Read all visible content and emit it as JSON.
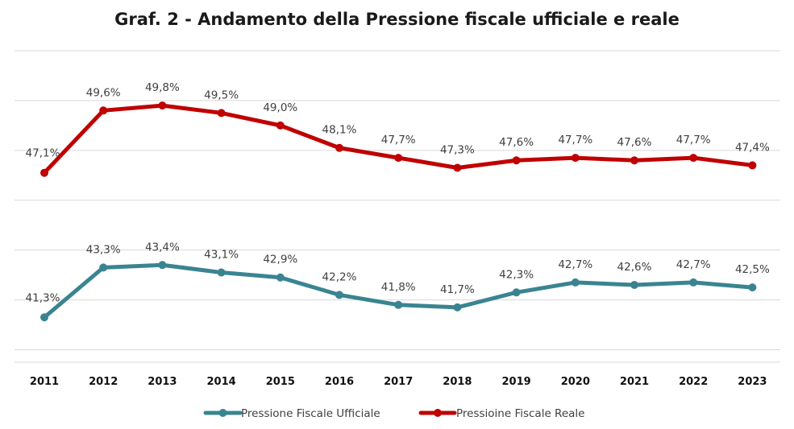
{
  "chart_data": {
    "type": "line",
    "title": "Graf. 2 - Andamento della Pressione fiscale ufficiale e reale",
    "xlabel": "",
    "ylabel": "",
    "categories": [
      "2011",
      "2012",
      "2013",
      "2014",
      "2015",
      "2016",
      "2017",
      "2018",
      "2019",
      "2020",
      "2021",
      "2022",
      "2023"
    ],
    "series": [
      {
        "name": "Pressione Fiscale Ufficiale",
        "color": "#3a8491",
        "values": [
          41.3,
          43.3,
          43.4,
          43.1,
          42.9,
          42.2,
          41.8,
          41.7,
          42.3,
          42.7,
          42.6,
          42.7,
          42.5
        ],
        "labels": [
          "41,3%",
          "43,3%",
          "43,4%",
          "43,1%",
          "42,9%",
          "42,2%",
          "41,8%",
          "41,7%",
          "42,3%",
          "42,7%",
          "42,6%",
          "42,7%",
          "42,5%"
        ]
      },
      {
        "name": "Pressioine Fiscale Reale",
        "color": "#c00000",
        "values": [
          47.1,
          49.6,
          49.8,
          49.5,
          49.0,
          48.1,
          47.7,
          47.3,
          47.6,
          47.7,
          47.6,
          47.7,
          47.4
        ],
        "labels": [
          "47,1%",
          "49,6%",
          "49,8%",
          "49,5%",
          "49,0%",
          "48,1%",
          "47,7%",
          "47,3%",
          "47,6%",
          "47,7%",
          "47,6%",
          "47,7%",
          "47,4%"
        ]
      }
    ],
    "ylim": [
      39.5,
      52.0
    ],
    "gridlines": [
      40,
      42,
      44,
      46,
      48,
      50,
      52
    ],
    "grid": true,
    "legend": "bottom"
  }
}
